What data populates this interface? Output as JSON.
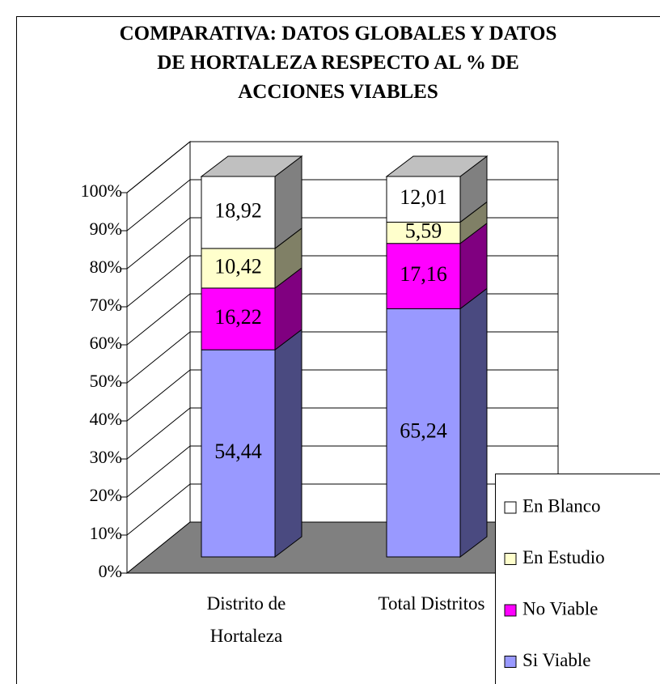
{
  "chart_data": {
    "type": "bar3d_stacked",
    "title": "COMPARATIVA: DATOS GLOBALES Y DATOS DE HORTALEZA RESPECTO AL % DE ACCIONES VIABLES",
    "categories": [
      "Distrito de Hortaleza",
      "Total Distritos"
    ],
    "series": [
      {
        "name": "Si Viable",
        "color": "#9999ff",
        "side": "#4a4a80",
        "values": [
          54.44,
          65.24
        ],
        "value_labels": [
          "54,44",
          "65,24"
        ]
      },
      {
        "name": "No Viable",
        "color": "#ff00ff",
        "side": "#800080",
        "values": [
          16.22,
          17.16
        ],
        "value_labels": [
          "16,22",
          "17,16"
        ]
      },
      {
        "name": "En Estudio",
        "color": "#ffffcc",
        "side": "#808066",
        "values": [
          10.42,
          5.59
        ],
        "value_labels": [
          "10,42",
          "5,59"
        ]
      },
      {
        "name": "En Blanco",
        "color": "#ffffff",
        "side": "#808080",
        "values": [
          18.92,
          12.01
        ],
        "value_labels": [
          "18,92",
          "12,01"
        ]
      }
    ],
    "ylim": [
      0,
      100
    ],
    "yticks": [
      {
        "value": 0,
        "label": "0%"
      },
      {
        "value": 10,
        "label": "10%"
      },
      {
        "value": 20,
        "label": "20%"
      },
      {
        "value": 30,
        "label": "30%"
      },
      {
        "value": 40,
        "label": "40%"
      },
      {
        "value": 50,
        "label": "50%"
      },
      {
        "value": 60,
        "label": "60%"
      },
      {
        "value": 70,
        "label": "70%"
      },
      {
        "value": 80,
        "label": "80%"
      },
      {
        "value": 90,
        "label": "90%"
      },
      {
        "value": 100,
        "label": "100%"
      }
    ],
    "grid": true,
    "legend": "bottom-right"
  }
}
